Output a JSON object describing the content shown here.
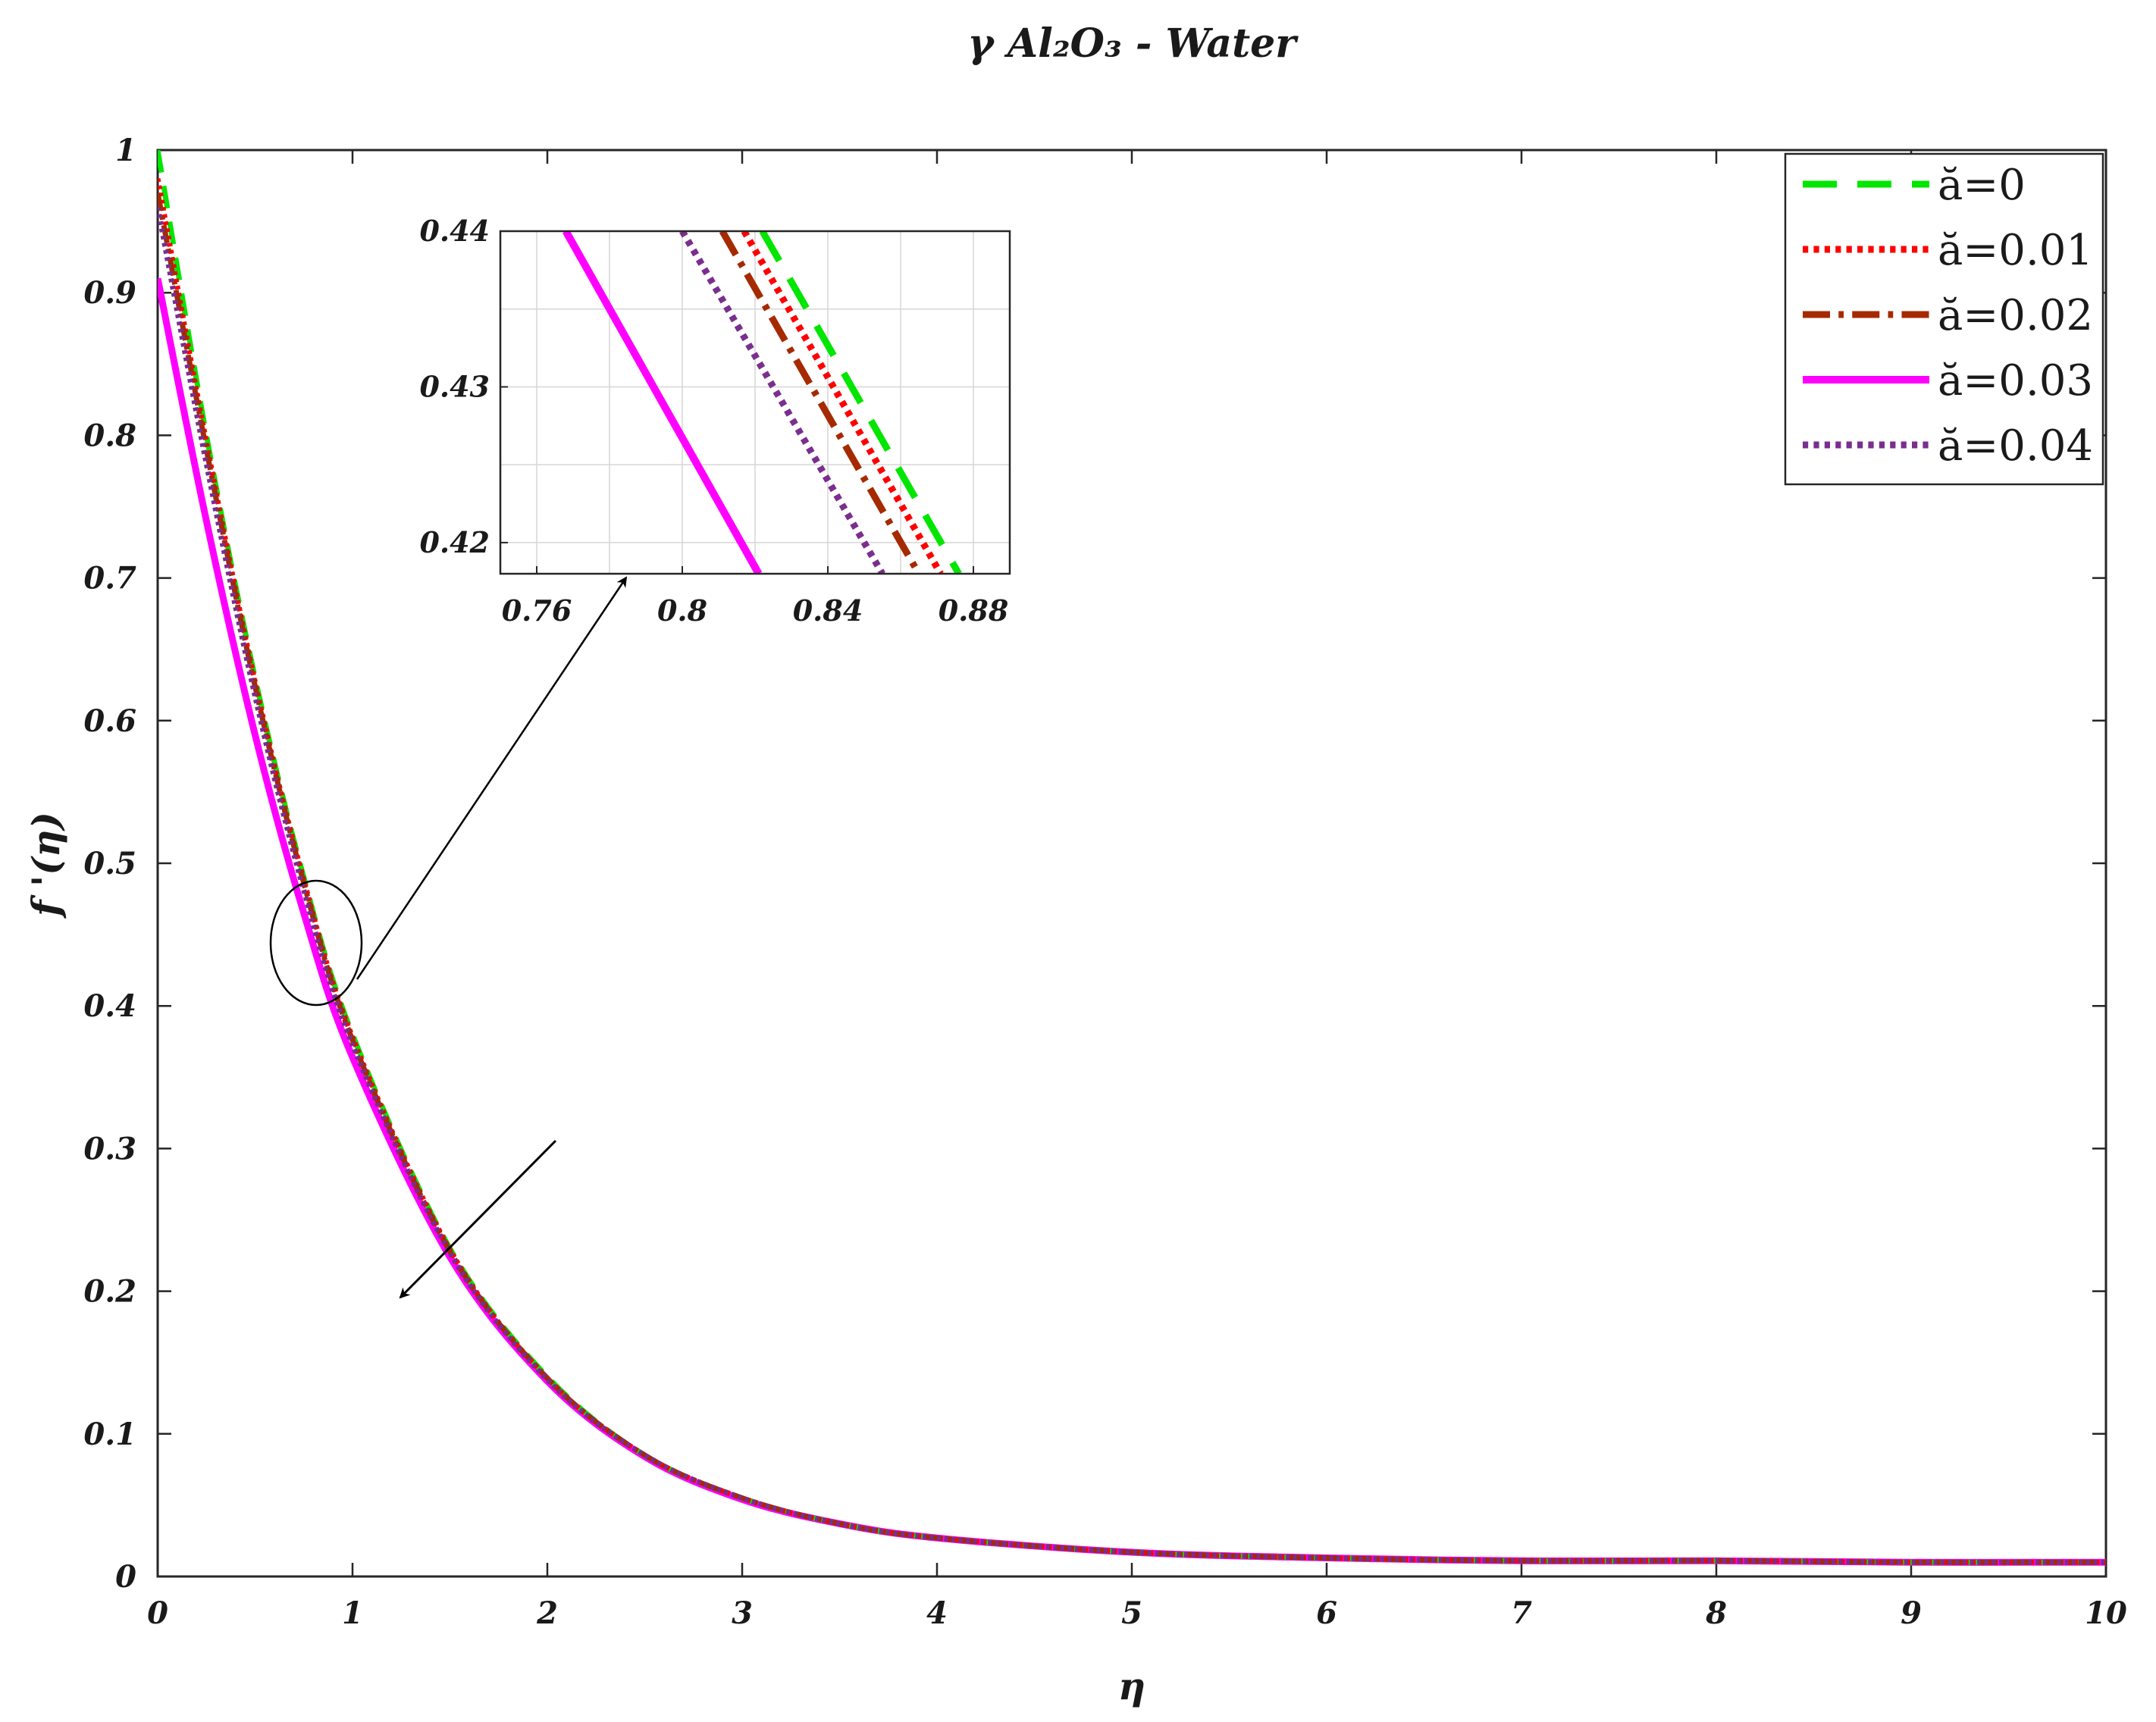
{
  "chart_data": [
    {
      "type": "line",
      "title": "γ Al₂O₃ - Water",
      "xlabel": "η",
      "ylabel": "f '(η)",
      "xlim": [
        0,
        10
      ],
      "ylim": [
        0,
        1
      ],
      "xticks": [
        "0",
        "1",
        "2",
        "3",
        "4",
        "5",
        "6",
        "7",
        "8",
        "9",
        "10"
      ],
      "yticks": [
        "0",
        "0.1",
        "0.2",
        "0.3",
        "0.4",
        "0.5",
        "0.6",
        "0.7",
        "0.8",
        "0.9",
        "1"
      ],
      "grid": false,
      "legend_position": "top-right",
      "x": [
        0,
        0.25,
        0.5,
        0.75,
        1,
        1.5,
        2,
        2.5,
        3,
        3.5,
        4,
        5,
        6,
        7,
        8,
        9,
        10
      ],
      "series": [
        {
          "name": "ă=0",
          "color": "#00e600",
          "dash": "dash",
          "values": [
            1.0,
            0.8,
            0.63,
            0.49,
            0.38,
            0.23,
            0.14,
            0.085,
            0.055,
            0.037,
            0.027,
            0.017,
            0.013,
            0.011,
            0.011,
            0.01,
            0.01
          ]
        },
        {
          "name": "ă=0.01",
          "color": "#ff0000",
          "dash": "dot",
          "values": [
            0.98,
            0.795,
            0.627,
            0.488,
            0.378,
            0.229,
            0.139,
            0.085,
            0.055,
            0.037,
            0.027,
            0.017,
            0.013,
            0.011,
            0.011,
            0.01,
            0.01
          ]
        },
        {
          "name": "ă=0.02",
          "color": "#a52a00",
          "dash": "dashdot",
          "values": [
            0.97,
            0.79,
            0.624,
            0.486,
            0.376,
            0.228,
            0.139,
            0.085,
            0.055,
            0.037,
            0.027,
            0.017,
            0.013,
            0.011,
            0.011,
            0.01,
            0.01
          ]
        },
        {
          "name": "ă=0.03",
          "color": "#ff00ff",
          "dash": "solid",
          "values": [
            0.91,
            0.74,
            0.59,
            0.465,
            0.364,
            0.224,
            0.137,
            0.084,
            0.054,
            0.037,
            0.027,
            0.017,
            0.013,
            0.011,
            0.011,
            0.01,
            0.01
          ]
        },
        {
          "name": "ă=0.04",
          "color": "#7a2e8e",
          "dash": "dot",
          "values": [
            0.96,
            0.78,
            0.617,
            0.481,
            0.373,
            0.227,
            0.138,
            0.085,
            0.055,
            0.037,
            0.027,
            0.017,
            0.013,
            0.011,
            0.011,
            0.01,
            0.01
          ]
        }
      ]
    },
    {
      "type": "line",
      "title": "",
      "xlim": [
        0.75,
        0.89
      ],
      "ylim": [
        0.418,
        0.44
      ],
      "xticks": [
        "0.76",
        "0.8",
        "0.84",
        "0.88"
      ],
      "yticks": [
        "0.42",
        "0.43",
        "0.44"
      ],
      "grid": true,
      "series": [
        {
          "name": "ă=0",
          "color": "#00e600",
          "dash": "dash",
          "x": [
            0.822,
            0.876
          ],
          "values": [
            0.44,
            0.418
          ]
        },
        {
          "name": "ă=0.01",
          "color": "#ff0000",
          "dash": "dot",
          "x": [
            0.817,
            0.871
          ],
          "values": [
            0.44,
            0.418
          ]
        },
        {
          "name": "ă=0.02",
          "color": "#a52a00",
          "dash": "dashdot",
          "x": [
            0.811,
            0.865
          ],
          "values": [
            0.44,
            0.418
          ]
        },
        {
          "name": "ă=0.03",
          "color": "#ff00ff",
          "dash": "solid",
          "x": [
            0.768,
            0.821
          ],
          "values": [
            0.44,
            0.418
          ]
        },
        {
          "name": "ă=0.04",
          "color": "#7a2e8e",
          "dash": "dot",
          "x": [
            0.8,
            0.855
          ],
          "values": [
            0.44,
            0.418
          ]
        }
      ]
    }
  ]
}
